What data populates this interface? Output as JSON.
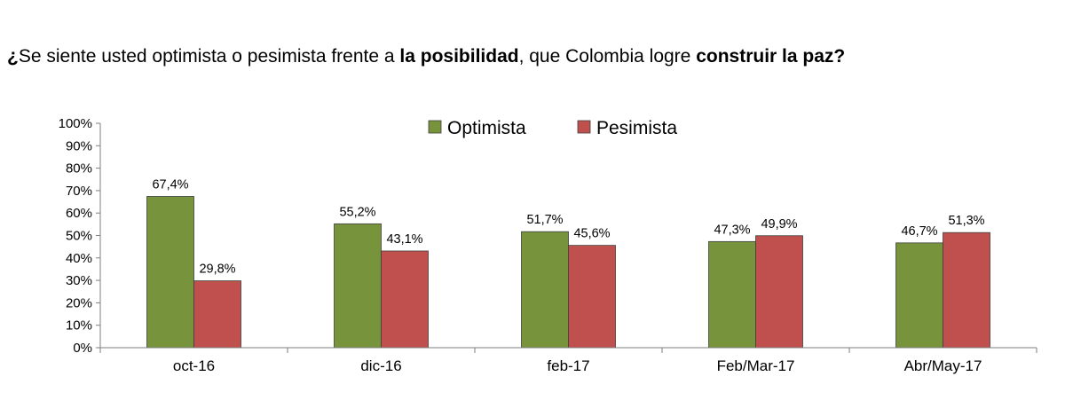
{
  "title": {
    "p1": "¿",
    "p2": "Se siente usted optimista o pesimista frente a ",
    "p3": "la posibilidad",
    "p4": ", que Colombia logre ",
    "p5": "construir la paz?"
  },
  "chart_data": {
    "type": "bar",
    "title": "¿Se siente usted optimista o pesimista frente a la posibilidad, que Colombia logre construir la paz?",
    "categories": [
      "oct-16",
      "dic-16",
      "feb-17",
      "Feb/Mar-17",
      "Abr/May-17"
    ],
    "series": [
      {
        "name": "Optimista",
        "color": "#77933C",
        "values": [
          67.4,
          55.2,
          51.7,
          47.3,
          46.7
        ],
        "labels": [
          "67,4%",
          "55,2%",
          "51,7%",
          "47,3%",
          "46,7%"
        ]
      },
      {
        "name": "Pesimista",
        "color": "#C0504D",
        "values": [
          29.8,
          43.1,
          45.6,
          49.9,
          51.3
        ],
        "labels": [
          "29,8%",
          "43,1%",
          "45,6%",
          "49,9%",
          "51,3%"
        ]
      }
    ],
    "yticks": [
      "0%",
      "10%",
      "20%",
      "30%",
      "40%",
      "50%",
      "60%",
      "70%",
      "80%",
      "90%",
      "100%"
    ],
    "ylim": [
      0,
      100
    ],
    "xlabel": "",
    "ylabel": "",
    "legend": "top-center",
    "grid": false
  }
}
